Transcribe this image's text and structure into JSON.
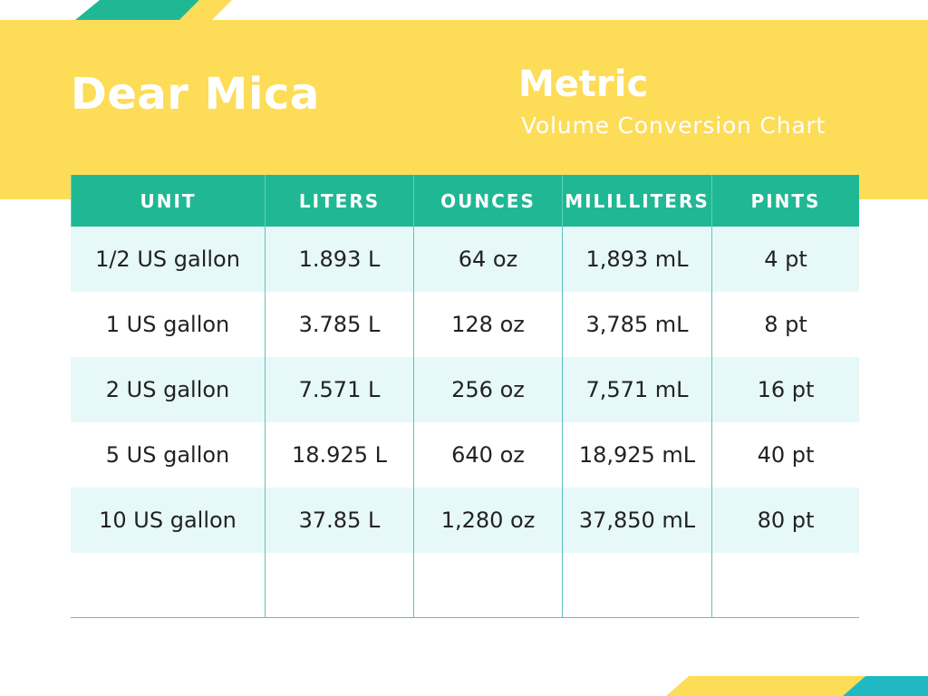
{
  "header": {
    "brand": "Dear Mica",
    "title": "Metric",
    "subtitle": "Volume Conversion Chart"
  },
  "table": {
    "columns": [
      "UNIT",
      "LITERS",
      "OUNCES",
      "MILILLITERS",
      "PINTS"
    ],
    "rows": [
      [
        "1/2 US gallon",
        "1.893 L",
        "64 oz",
        "1,893 mL",
        "4 pt"
      ],
      [
        "1 US gallon",
        "3.785 L",
        "128 oz",
        "3,785 mL",
        "8 pt"
      ],
      [
        "2 US gallon",
        "7.571 L",
        "256 oz",
        "7,571 mL",
        "16 pt"
      ],
      [
        "5 US gallon",
        "18.925 L",
        "640 oz",
        "18,925 mL",
        "40 pt"
      ],
      [
        "10 US gallon",
        "37.85 L",
        "1,280 oz",
        "37,850 mL",
        "80 pt"
      ]
    ]
  }
}
